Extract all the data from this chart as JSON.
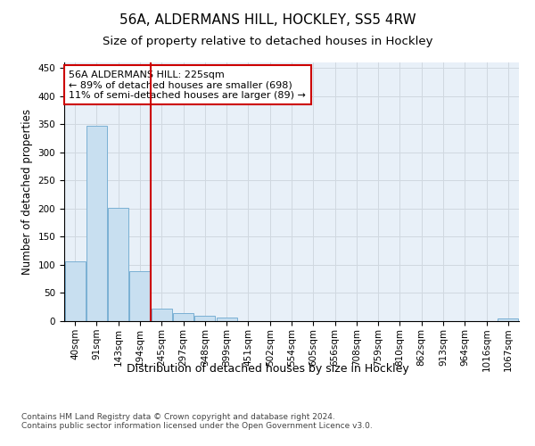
{
  "title1": "56A, ALDERMANS HILL, HOCKLEY, SS5 4RW",
  "title2": "Size of property relative to detached houses in Hockley",
  "xlabel": "Distribution of detached houses by size in Hockley",
  "ylabel": "Number of detached properties",
  "bar_values": [
    107,
    347,
    201,
    89,
    23,
    15,
    9,
    6,
    0,
    0,
    0,
    0,
    0,
    0,
    0,
    0,
    0,
    0,
    0,
    0,
    5
  ],
  "categories": [
    "40sqm",
    "91sqm",
    "143sqm",
    "194sqm",
    "245sqm",
    "297sqm",
    "348sqm",
    "399sqm",
    "451sqm",
    "502sqm",
    "554sqm",
    "605sqm",
    "656sqm",
    "708sqm",
    "759sqm",
    "810sqm",
    "862sqm",
    "913sqm",
    "964sqm",
    "1016sqm",
    "1067sqm"
  ],
  "bar_color": "#c8dff0",
  "bar_edge_color": "#7ab0d4",
  "grid_color": "#d0d8e0",
  "background_color": "#e8f0f8",
  "red_line_x": 3.5,
  "annotation_text": "56A ALDERMANS HILL: 225sqm\n← 89% of detached houses are smaller (698)\n11% of semi-detached houses are larger (89) →",
  "annotation_box_color": "#ffffff",
  "annotation_box_edge": "#cc0000",
  "red_line_color": "#cc0000",
  "ylim": [
    0,
    460
  ],
  "yticks": [
    0,
    50,
    100,
    150,
    200,
    250,
    300,
    350,
    400,
    450
  ],
  "footnote": "Contains HM Land Registry data © Crown copyright and database right 2024.\nContains public sector information licensed under the Open Government Licence v3.0.",
  "title1_fontsize": 11,
  "title2_fontsize": 9.5,
  "xlabel_fontsize": 9,
  "ylabel_fontsize": 8.5,
  "annot_fontsize": 8,
  "tick_fontsize": 7.5,
  "footnote_fontsize": 6.5
}
